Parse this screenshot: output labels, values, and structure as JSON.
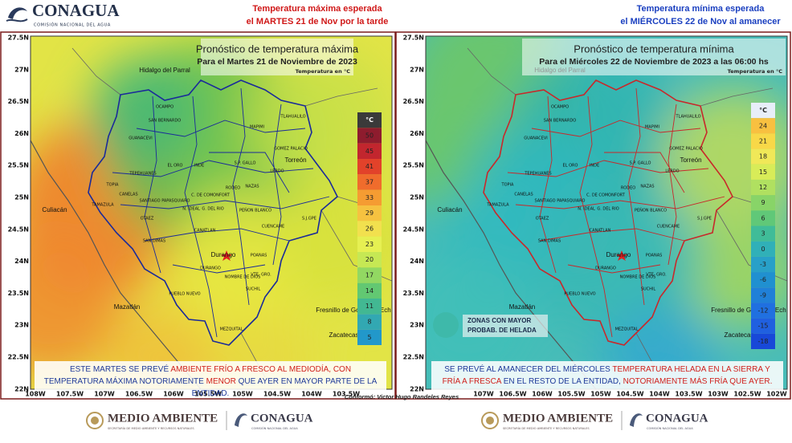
{
  "header": {
    "logo": {
      "name": "CONAGUA",
      "subtitle": "COMISIÓN NACIONAL DEL AGUA"
    }
  },
  "panels": [
    {
      "heading": [
        "Temperatura máxima esperada",
        "el MARTES 21 de Nov por la tarde"
      ],
      "heading_color": "#d01818",
      "outline_color": "#1a2a9a",
      "title": "Pronóstico de temperatura máxima",
      "subtitle": "Para el Martes 21 de Noviembre de 2023",
      "unit_note": "Temperatura en °C",
      "lat_labels": [
        "27.5N",
        "27N",
        "26.5N",
        "26N",
        "25.5N",
        "25N",
        "24.5N",
        "24N",
        "23.5N",
        "23N",
        "22.5N",
        "22N"
      ],
      "lon_labels": [
        "108W",
        "107.5W",
        "107W",
        "106.5W",
        "106W",
        "105.5W",
        "105W",
        "104.5W",
        "104W",
        "103.5W"
      ],
      "legend": {
        "unit": "°C",
        "items": [
          {
            "value": 50,
            "color": "#8e1c2e"
          },
          {
            "value": 45,
            "color": "#c2262e"
          },
          {
            "value": 41,
            "color": "#e2422a"
          },
          {
            "value": 37,
            "color": "#f06c2c"
          },
          {
            "value": 33,
            "color": "#f59c32"
          },
          {
            "value": 29,
            "color": "#f6c240"
          },
          {
            "value": 26,
            "color": "#f2e04e"
          },
          {
            "value": 23,
            "color": "#e6f052"
          },
          {
            "value": 20,
            "color": "#c6e854"
          },
          {
            "value": 17,
            "color": "#92d862"
          },
          {
            "value": 14,
            "color": "#62c872"
          },
          {
            "value": 11,
            "color": "#42b892"
          },
          {
            "value": 8,
            "color": "#32a8b2"
          },
          {
            "value": 5,
            "color": "#2298ca"
          }
        ]
      },
      "summary": [
        {
          "text": "ESTE MARTES SE PREVÉ ",
          "color": "#1f3a9a"
        },
        {
          "text": "AMBIENTE FRÍO A FRESCO AL MEDIODÍA, CON",
          "color": "#d0201c"
        },
        {
          "text": " TEMPERATURA MÁXIMA NOTORIAMENTE ",
          "color": "#1f3a9a"
        },
        {
          "text": "MENOR",
          "color": "#d0201c"
        },
        {
          "text": " QUE AYER EN MAYOR PARTE DE LA ENTIDAD.",
          "color": "#1f3a9a"
        }
      ]
    },
    {
      "heading": [
        "Temperatura mínima esperada",
        "el MIÉRCOLES 22  de Nov al amanecer"
      ],
      "heading_color": "#1a3fc0",
      "outline_color": "#c8282a",
      "title": "Pronóstico de temperatura mínima",
      "subtitle": "Para el Miércoles 22 de Noviembre de 2023 a las 06:00 hs",
      "unit_note": "Temperatura en °C",
      "lat_labels": [
        "27.5N",
        "27N",
        "26.5N",
        "26N",
        "25.5N",
        "25N",
        "24.5N",
        "24N",
        "23.5N",
        "23N",
        "22.5N",
        "22N"
      ],
      "lon_labels": [
        "107W",
        "106.5W",
        "106W",
        "105.5W",
        "105W",
        "104.5W",
        "104W",
        "103.5W",
        "103W",
        "102.5W",
        "102W"
      ],
      "legend": {
        "unit": "°C",
        "items": [
          {
            "value": 24,
            "color": "#f8c040"
          },
          {
            "value": 21,
            "color": "#f8d848"
          },
          {
            "value": 18,
            "color": "#f0e858"
          },
          {
            "value": 15,
            "color": "#d8ec58"
          },
          {
            "value": 12,
            "color": "#b0e060"
          },
          {
            "value": 9,
            "color": "#88d468"
          },
          {
            "value": 6,
            "color": "#60c878"
          },
          {
            "value": 3,
            "color": "#40bc98"
          },
          {
            "value": 0,
            "color": "#30b0b8"
          },
          {
            "value": -3,
            "color": "#28a0c8"
          },
          {
            "value": -6,
            "color": "#2090d0"
          },
          {
            "value": -9,
            "color": "#2080d8"
          },
          {
            "value": -12,
            "color": "#2070e0"
          },
          {
            "value": -15,
            "color": "#2060e0"
          },
          {
            "value": -18,
            "color": "#1848d8"
          }
        ]
      },
      "frost_zone": [
        "ZONAS CON MAYOR",
        "PROBAB. DE HELADA"
      ],
      "summary": [
        {
          "text": "SE PREVÉ AL AMANECER DEL MIÉRCOLES ",
          "color": "#1f3a9a"
        },
        {
          "text": "TEMPERATURA HELADA EN LA SIERRA Y FRÍA A FRESCA",
          "color": "#d0201c"
        },
        {
          "text": " EN EL RESTO DE LA ENTIDAD, ",
          "color": "#1f3a9a"
        },
        {
          "text": "NOTORIAMENTE MÁS FRÍA QUE AYER.",
          "color": "#d0201c"
        }
      ]
    }
  ],
  "cities": [
    "Hidalgo del Parral",
    "Culiacán",
    "Torreón",
    "Durango",
    "Mazatlán",
    "Fresnillo de González Ech",
    "Zacatecas"
  ],
  "municipalities": [
    "OCAMPO",
    "SAN BERNARDO",
    "GUANACEVI",
    "MAPIMI",
    "TLAHUALILO",
    "GOMEZ PALACIO",
    "LERDO",
    "EL ORO",
    "INDE",
    "S.P. GALLO",
    "TEPEHUANES",
    "TOPIA",
    "CANELAS",
    "TAMAZULA",
    "SANTIAGO PAPASQUIARO",
    "C. DE COMONFORT",
    "RODEO",
    "NAZAS",
    "G. DEL RIO",
    "N. IDEAL",
    "PEÑON BLANCO",
    "CUENCAME",
    "S.J.GPE",
    "OTAEZ",
    "CANATLAN",
    "SAN DIMAS",
    "DURANGO",
    "POANAS",
    "NOMBRE DE DIOS",
    "VTE. GRO.",
    "SUCHIL",
    "PUEBLO NUEVO",
    "MEZQUITAL"
  ],
  "credit": "Conformó: Victor Hugo Randeles Reyes",
  "footer": {
    "logos": [
      {
        "name": "MEDIO AMBIENTE",
        "subtitle": "SECRETARÍA DE MEDIO AMBIENTE Y RECURSOS NATURALES"
      },
      {
        "name": "CONAGUA",
        "subtitle": "COMISIÓN NACIONAL DEL AGUA"
      }
    ]
  }
}
